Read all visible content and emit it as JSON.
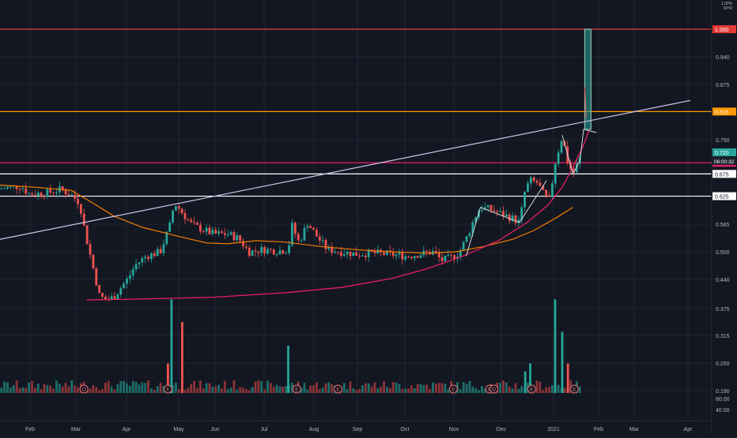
{
  "chart_data": {
    "type": "candlestick",
    "currency_label": "MYR",
    "currency_prefix": "1.00%",
    "y_ticks": [
      "0.940",
      "0.875",
      "0.750",
      "0.565",
      "0.500",
      "0.440",
      "0.375",
      "0.315",
      "0.250",
      "0.190"
    ],
    "volume_ticks": [
      "80.00",
      "40.00"
    ],
    "x_ticks": [
      "Feb",
      "Mar",
      "Apr",
      "May",
      "Jun",
      "Jul",
      "Aug",
      "Sep",
      "Oct",
      "Nov",
      "Dec",
      "2021",
      "Feb",
      "Mar",
      "Apr"
    ],
    "horizontal_levels": [
      {
        "label": "1.000",
        "price": 1.0,
        "color": "#e53935"
      },
      {
        "label": "0.815",
        "price": 0.815,
        "color": "#ff9800"
      },
      {
        "label": "0.700",
        "price": 0.7,
        "color": "#e91e63"
      },
      {
        "label": "0.675",
        "price": 0.675,
        "color": "#ffffff"
      },
      {
        "label": "0.625",
        "price": 0.625,
        "color": "#ffffff"
      }
    ],
    "last_price": {
      "label": "0.720",
      "countdown": "06:00:32",
      "color": "#26a69a"
    },
    "events": [
      {
        "label": "D",
        "x": 0.118
      },
      {
        "label": "E",
        "x": 0.236
      },
      {
        "label": "E",
        "x": 0.417
      },
      {
        "label": "E",
        "x": 0.475
      },
      {
        "label": "E",
        "x": 0.637
      },
      {
        "label": "E",
        "x": 0.688
      },
      {
        "label": "D",
        "x": 0.694
      },
      {
        "label": "E",
        "x": 0.747
      },
      {
        "label": "E",
        "x": 0.807
      }
    ],
    "price_path": [
      [
        0.0,
        0.642
      ],
      [
        0.03,
        0.648
      ],
      [
        0.04,
        0.63
      ],
      [
        0.065,
        0.632
      ],
      [
        0.085,
        0.64
      ],
      [
        0.1,
        0.628
      ],
      [
        0.112,
        0.61
      ],
      [
        0.12,
        0.54
      ],
      [
        0.13,
        0.47
      ],
      [
        0.14,
        0.4
      ],
      [
        0.15,
        0.392
      ],
      [
        0.16,
        0.398
      ],
      [
        0.17,
        0.42
      ],
      [
        0.18,
        0.44
      ],
      [
        0.19,
        0.47
      ],
      [
        0.205,
        0.49
      ],
      [
        0.215,
        0.495
      ],
      [
        0.225,
        0.5
      ],
      [
        0.238,
        0.555
      ],
      [
        0.245,
        0.61
      ],
      [
        0.255,
        0.59
      ],
      [
        0.27,
        0.56
      ],
      [
        0.285,
        0.55
      ],
      [
        0.3,
        0.54
      ],
      [
        0.32,
        0.54
      ],
      [
        0.335,
        0.53
      ],
      [
        0.35,
        0.5
      ],
      [
        0.37,
        0.505
      ],
      [
        0.39,
        0.502
      ],
      [
        0.405,
        0.505
      ],
      [
        0.41,
        0.56
      ],
      [
        0.42,
        0.52
      ],
      [
        0.432,
        0.565
      ],
      [
        0.445,
        0.535
      ],
      [
        0.46,
        0.505
      ],
      [
        0.48,
        0.5
      ],
      [
        0.5,
        0.495
      ],
      [
        0.52,
        0.497
      ],
      [
        0.545,
        0.495
      ],
      [
        0.57,
        0.49
      ],
      [
        0.59,
        0.495
      ],
      [
        0.61,
        0.5
      ],
      [
        0.62,
        0.48
      ],
      [
        0.635,
        0.488
      ],
      [
        0.645,
        0.498
      ],
      [
        0.655,
        0.53
      ],
      [
        0.668,
        0.58
      ],
      [
        0.675,
        0.6
      ],
      [
        0.69,
        0.595
      ],
      [
        0.705,
        0.585
      ],
      [
        0.72,
        0.575
      ],
      [
        0.73,
        0.566
      ],
      [
        0.738,
        0.64
      ],
      [
        0.745,
        0.66
      ],
      [
        0.755,
        0.655
      ],
      [
        0.765,
        0.625
      ],
      [
        0.772,
        0.615
      ],
      [
        0.78,
        0.7
      ],
      [
        0.79,
        0.76
      ],
      [
        0.797,
        0.705
      ],
      [
        0.805,
        0.675
      ],
      [
        0.812,
        0.7
      ],
      [
        0.818,
        0.72
      ]
    ],
    "breakout_candle": {
      "x": 0.826,
      "open": 0.775,
      "close": 1.0,
      "high": 1.0,
      "low": 0.775,
      "color": "#26a69a"
    },
    "ma_path": [
      [
        0.0,
        0.65
      ],
      [
        0.05,
        0.645
      ],
      [
        0.1,
        0.638
      ],
      [
        0.13,
        0.61
      ],
      [
        0.16,
        0.58
      ],
      [
        0.2,
        0.555
      ],
      [
        0.25,
        0.535
      ],
      [
        0.29,
        0.52
      ],
      [
        0.32,
        0.518
      ],
      [
        0.36,
        0.525
      ],
      [
        0.4,
        0.522
      ],
      [
        0.45,
        0.512
      ],
      [
        0.5,
        0.505
      ],
      [
        0.55,
        0.5
      ],
      [
        0.6,
        0.497
      ],
      [
        0.64,
        0.5
      ],
      [
        0.68,
        0.512
      ],
      [
        0.72,
        0.528
      ],
      [
        0.75,
        0.548
      ],
      [
        0.78,
        0.575
      ],
      [
        0.805,
        0.6
      ]
    ],
    "cup_curve": [
      [
        0.122,
        0.392
      ],
      [
        0.2,
        0.394
      ],
      [
        0.3,
        0.398
      ],
      [
        0.4,
        0.408
      ],
      [
        0.48,
        0.42
      ],
      [
        0.55,
        0.44
      ],
      [
        0.6,
        0.462
      ],
      [
        0.65,
        0.49
      ],
      [
        0.7,
        0.525
      ],
      [
        0.74,
        0.565
      ],
      [
        0.77,
        0.605
      ],
      [
        0.79,
        0.645
      ],
      [
        0.805,
        0.69
      ],
      [
        0.82,
        0.74
      ],
      [
        0.828,
        0.775
      ]
    ],
    "trendline": {
      "start": [
        0.0,
        0.528
      ],
      "end": [
        0.97,
        0.84
      ]
    },
    "volume_spikes": [
      {
        "x": 0.241,
        "v": 0.95,
        "up": true
      },
      {
        "x": 0.256,
        "v": 0.72,
        "up": false
      },
      {
        "x": 0.236,
        "v": 0.3,
        "up": false
      },
      {
        "x": 0.405,
        "v": 0.48,
        "up": true
      },
      {
        "x": 0.78,
        "v": 0.95,
        "up": true
      },
      {
        "x": 0.79,
        "v": 0.62,
        "up": true
      },
      {
        "x": 0.798,
        "v": 0.3,
        "up": false
      },
      {
        "x": 0.745,
        "v": 0.3,
        "up": true
      },
      {
        "x": 0.738,
        "v": 0.22,
        "up": true
      }
    ]
  }
}
